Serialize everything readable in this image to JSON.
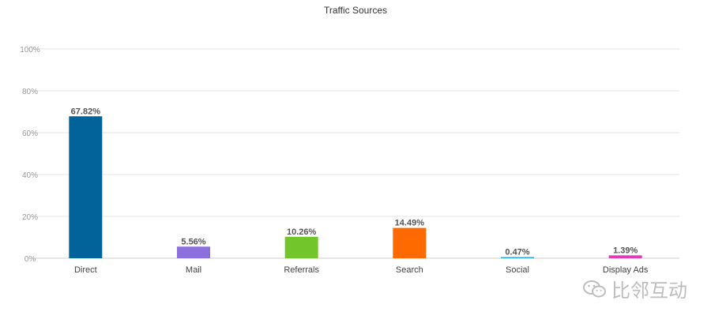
{
  "chart_data": {
    "type": "bar",
    "title": "Traffic Sources",
    "categories": [
      "Direct",
      "Mail",
      "Referrals",
      "Search",
      "Social",
      "Display Ads"
    ],
    "values": [
      67.82,
      5.56,
      10.26,
      14.49,
      0.47,
      1.39
    ],
    "data_labels": [
      "67.82%",
      "5.56%",
      "10.26%",
      "14.49%",
      "0.47%",
      "1.39%"
    ],
    "colors": [
      "#02629a",
      "#8b6fdc",
      "#72c52a",
      "#ff6a00",
      "#27a8e0",
      "#e23cb5"
    ],
    "ylim": [
      0,
      100
    ],
    "yticks": [
      0,
      20,
      40,
      60,
      80,
      100
    ],
    "ytick_labels": [
      "0%",
      "20%",
      "40%",
      "60%",
      "80%",
      "100%"
    ],
    "xlabel": "",
    "ylabel": "",
    "grid": true,
    "legend": "none"
  },
  "watermark": {
    "text": "比邻互动",
    "icon": "wechat-icon"
  }
}
